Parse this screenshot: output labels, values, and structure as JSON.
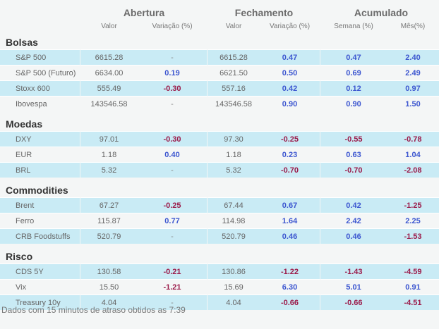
{
  "header": {
    "groups": [
      "Abertura",
      "Fechamento",
      "Acumulado"
    ],
    "columns": [
      "Valor",
      "Variação (%)",
      "Valor",
      "Variação (%)",
      "Semana (%)",
      "Mês(%)"
    ]
  },
  "sections": [
    {
      "title": "Bolsas",
      "rows": [
        [
          "S&P 500",
          "6615.28",
          "-",
          "6615.28",
          "0.47",
          "0.47",
          "2.40"
        ],
        [
          "S&P 500 (Futuro)",
          "6634.00",
          "0.19",
          "6621.50",
          "0.50",
          "0.69",
          "2.49"
        ],
        [
          "Stoxx 600",
          "555.49",
          "-0.30",
          "557.16",
          "0.42",
          "0.12",
          "0.97"
        ],
        [
          "Ibovespa",
          "143546.58",
          "-",
          "143546.58",
          "0.90",
          "0.90",
          "1.50"
        ]
      ]
    },
    {
      "title": "Moedas",
      "rows": [
        [
          "DXY",
          "97.01",
          "-0.30",
          "97.30",
          "-0.25",
          "-0.55",
          "-0.78"
        ],
        [
          "EUR",
          "1.18",
          "0.40",
          "1.18",
          "0.23",
          "0.63",
          "1.04"
        ],
        [
          "BRL",
          "5.32",
          "-",
          "5.32",
          "-0.70",
          "-0.70",
          "-2.08"
        ]
      ]
    },
    {
      "title": "Commodities",
      "rows": [
        [
          "Brent",
          "67.27",
          "-0.25",
          "67.44",
          "0.67",
          "0.42",
          "-1.25"
        ],
        [
          "Ferro",
          "115.87",
          "0.77",
          "114.98",
          "1.64",
          "2.42",
          "2.25"
        ],
        [
          "CRB Foodstuffs",
          "520.79",
          "-",
          "520.79",
          "0.46",
          "0.46",
          "-1.53"
        ]
      ]
    },
    {
      "title": "Risco",
      "rows": [
        [
          "CDS 5Y",
          "130.58",
          "-0.21",
          "130.86",
          "-1.22",
          "-1.43",
          "-4.59"
        ],
        [
          "Vix",
          "15.50",
          "-1.21",
          "15.69",
          "6.30",
          "5.01",
          "0.91"
        ],
        [
          "Treasury 10y",
          "4.04",
          "-",
          "4.04",
          "-0.66",
          "-0.66",
          "-4.51"
        ]
      ]
    }
  ],
  "footer": "Dados com 15 minutos de atraso obtidos as 7:39"
}
